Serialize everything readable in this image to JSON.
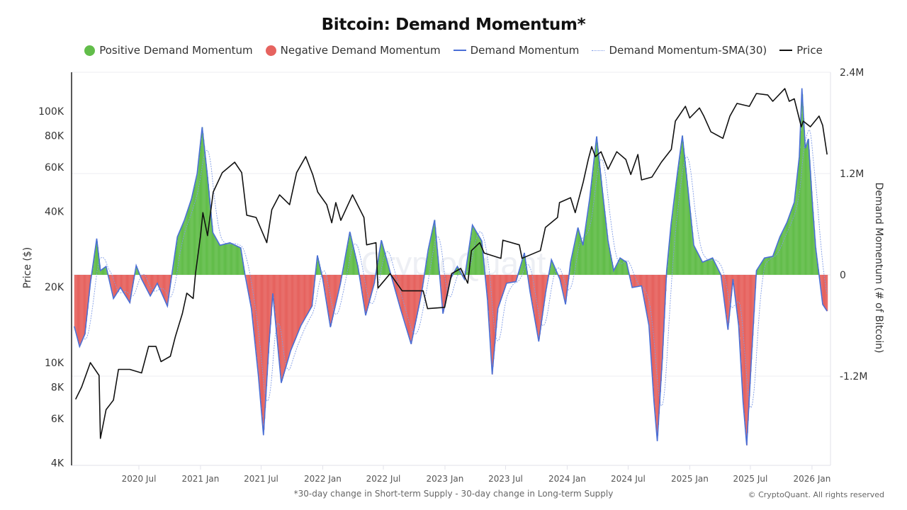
{
  "chart_data": {
    "type": "bar+line",
    "title": "Bitcoin: Demand Momentum*",
    "footnote": "*30-day change in Short-term Supply - 30-day change in Long-term Supply",
    "copyright": "© CryptoQuant. All rights reserved",
    "watermark": "CryptoQuant",
    "legend": [
      {
        "name": "Positive Demand Momentum",
        "kind": "dot",
        "color": "#62bd4a"
      },
      {
        "name": "Negative Demand Momentum",
        "kind": "dot",
        "color": "#e6635f"
      },
      {
        "name": "Demand Momentum",
        "kind": "line",
        "color": "#4a6fd6"
      },
      {
        "name": "Demand Momentum-SMA(30)",
        "kind": "dotted",
        "color": "#7f9be6"
      },
      {
        "name": "Price",
        "kind": "line",
        "color": "#111111"
      }
    ],
    "legend_position": "top",
    "y_left": {
      "label": "Price ($)",
      "scale": "log",
      "range": [
        4000,
        143000
      ],
      "ticks": [
        "4K",
        "6K",
        "8K",
        "10K",
        "20K",
        "40K",
        "60K",
        "80K",
        "100K"
      ],
      "tick_values": [
        4000,
        6000,
        8000,
        10000,
        20000,
        40000,
        60000,
        80000,
        100000
      ]
    },
    "y_right": {
      "label": "Demand Momentum (# of Bitcoin)",
      "scale": "linear",
      "range": [
        -2260000,
        2400000
      ],
      "ticks": [
        "2.4M",
        "1.2M",
        "0",
        "-1.2M"
      ],
      "tick_values": [
        2400000,
        1200000,
        0,
        -1200000
      ]
    },
    "x": {
      "range": [
        "2019-12-20",
        "2026-02-20"
      ],
      "ticks": [
        "2020 Jul",
        "2021 Jan",
        "2021 Jul",
        "2022 Jan",
        "2022 Jul",
        "2023 Jan",
        "2023 Jul",
        "2024 Jan",
        "2024 Jul",
        "2025 Jan",
        "2025 Jul",
        "2026 Jan"
      ],
      "tick_dates": [
        "2020-07-01",
        "2021-01-01",
        "2021-07-01",
        "2022-01-01",
        "2022-07-01",
        "2023-01-01",
        "2023-07-01",
        "2024-01-01",
        "2024-07-01",
        "2025-01-01",
        "2025-07-01",
        "2026-01-01"
      ]
    },
    "grid": true,
    "colors": {
      "positive": "#62bd4a",
      "negative": "#e6635f",
      "momentum": "#4a6fd6",
      "sma": "#7f9be6",
      "price": "#111111"
    },
    "demand_momentum": [
      [
        "2019-12-21",
        -610000
      ],
      [
        "2020-01-06",
        -850000
      ],
      [
        "2020-01-22",
        -700000
      ],
      [
        "2020-02-07",
        -100000
      ],
      [
        "2020-02-26",
        430000
      ],
      [
        "2020-03-08",
        50000
      ],
      [
        "2020-03-25",
        100000
      ],
      [
        "2020-04-16",
        -280000
      ],
      [
        "2020-05-07",
        -150000
      ],
      [
        "2020-06-04",
        -330000
      ],
      [
        "2020-06-23",
        110000
      ],
      [
        "2020-07-09",
        -50000
      ],
      [
        "2020-08-04",
        -250000
      ],
      [
        "2020-08-25",
        -100000
      ],
      [
        "2020-09-24",
        -370000
      ],
      [
        "2020-10-09",
        50000
      ],
      [
        "2020-10-24",
        450000
      ],
      [
        "2020-11-14",
        650000
      ],
      [
        "2020-12-05",
        900000
      ],
      [
        "2020-12-22",
        1200000
      ],
      [
        "2021-01-06",
        1750000
      ],
      [
        "2021-01-21",
        1200000
      ],
      [
        "2021-02-07",
        500000
      ],
      [
        "2021-02-28",
        350000
      ],
      [
        "2021-03-30",
        380000
      ],
      [
        "2021-05-01",
        320000
      ],
      [
        "2021-05-14",
        0
      ],
      [
        "2021-06-02",
        -400000
      ],
      [
        "2021-06-23",
        -1200000
      ],
      [
        "2021-07-08",
        -1900000
      ],
      [
        "2021-07-25",
        -800000
      ],
      [
        "2021-08-05",
        -220000
      ],
      [
        "2021-08-30",
        -1280000
      ],
      [
        "2021-09-27",
        -900000
      ],
      [
        "2021-10-28",
        -600000
      ],
      [
        "2021-11-30",
        -370000
      ],
      [
        "2021-12-16",
        230000
      ],
      [
        "2022-01-01",
        -50000
      ],
      [
        "2022-01-24",
        -620000
      ],
      [
        "2022-02-23",
        -100000
      ],
      [
        "2022-03-23",
        510000
      ],
      [
        "2022-04-16",
        100000
      ],
      [
        "2022-05-09",
        -480000
      ],
      [
        "2022-06-04",
        -100000
      ],
      [
        "2022-06-25",
        410000
      ],
      [
        "2022-07-20",
        50000
      ],
      [
        "2022-08-21",
        -400000
      ],
      [
        "2022-09-22",
        -820000
      ],
      [
        "2022-10-24",
        -200000
      ],
      [
        "2022-11-12",
        300000
      ],
      [
        "2022-12-01",
        650000
      ],
      [
        "2022-12-16",
        0
      ],
      [
        "2022-12-26",
        -460000
      ],
      [
        "2023-01-17",
        -50000
      ],
      [
        "2023-02-07",
        100000
      ],
      [
        "2023-02-28",
        -50000
      ],
      [
        "2023-03-24",
        590000
      ],
      [
        "2023-04-21",
        400000
      ],
      [
        "2023-05-08",
        -300000
      ],
      [
        "2023-05-22",
        -1180000
      ],
      [
        "2023-06-08",
        -400000
      ],
      [
        "2023-07-04",
        -100000
      ],
      [
        "2023-08-01",
        -80000
      ],
      [
        "2023-08-26",
        260000
      ],
      [
        "2023-09-12",
        -200000
      ],
      [
        "2023-10-08",
        -790000
      ],
      [
        "2023-10-29",
        -200000
      ],
      [
        "2023-11-15",
        180000
      ],
      [
        "2023-12-10",
        -50000
      ],
      [
        "2023-12-27",
        -350000
      ],
      [
        "2024-01-11",
        150000
      ],
      [
        "2024-02-02",
        560000
      ],
      [
        "2024-02-17",
        350000
      ],
      [
        "2024-03-08",
        900000
      ],
      [
        "2024-03-29",
        1640000
      ],
      [
        "2024-04-15",
        1000000
      ],
      [
        "2024-05-02",
        400000
      ],
      [
        "2024-05-19",
        50000
      ],
      [
        "2024-06-07",
        200000
      ],
      [
        "2024-06-26",
        150000
      ],
      [
        "2024-07-13",
        -150000
      ],
      [
        "2024-08-10",
        -130000
      ],
      [
        "2024-09-01",
        -600000
      ],
      [
        "2024-09-16",
        -1500000
      ],
      [
        "2024-09-26",
        -1970000
      ],
      [
        "2024-10-11",
        -1000000
      ],
      [
        "2024-10-24",
        50000
      ],
      [
        "2024-11-06",
        600000
      ],
      [
        "2024-11-25",
        1200000
      ],
      [
        "2024-12-10",
        1650000
      ],
      [
        "2024-12-27",
        1000000
      ],
      [
        "2025-01-13",
        350000
      ],
      [
        "2025-02-08",
        150000
      ],
      [
        "2025-03-10",
        200000
      ],
      [
        "2025-04-04",
        0
      ],
      [
        "2025-04-25",
        -650000
      ],
      [
        "2025-05-10",
        -50000
      ],
      [
        "2025-05-27",
        -600000
      ],
      [
        "2025-06-09",
        -1500000
      ],
      [
        "2025-06-20",
        -2020000
      ],
      [
        "2025-07-04",
        -1000000
      ],
      [
        "2025-07-19",
        50000
      ],
      [
        "2025-08-12",
        200000
      ],
      [
        "2025-09-06",
        220000
      ],
      [
        "2025-09-27",
        450000
      ],
      [
        "2025-10-18",
        620000
      ],
      [
        "2025-11-09",
        860000
      ],
      [
        "2025-11-24",
        1400000
      ],
      [
        "2025-12-02",
        2210000
      ],
      [
        "2025-12-12",
        1500000
      ],
      [
        "2025-12-21",
        1610000
      ],
      [
        "2026-01-03",
        800000
      ],
      [
        "2026-01-12",
        320000
      ],
      [
        "2026-01-22",
        0
      ],
      [
        "2026-02-02",
        -350000
      ],
      [
        "2026-02-15",
        -430000
      ]
    ],
    "price": [
      [
        "2019-12-25",
        7150
      ],
      [
        "2020-01-12",
        8000
      ],
      [
        "2020-02-07",
        10000
      ],
      [
        "2020-03-04",
        8900
      ],
      [
        "2020-03-08",
        5000
      ],
      [
        "2020-03-25",
        6500
      ],
      [
        "2020-04-16",
        7100
      ],
      [
        "2020-05-01",
        9400
      ],
      [
        "2020-06-04",
        9400
      ],
      [
        "2020-07-09",
        9100
      ],
      [
        "2020-07-30",
        11600
      ],
      [
        "2020-08-21",
        11600
      ],
      [
        "2020-09-05",
        10100
      ],
      [
        "2020-10-03",
        10600
      ],
      [
        "2020-10-18",
        12700
      ],
      [
        "2020-11-08",
        15700
      ],
      [
        "2020-11-21",
        18900
      ],
      [
        "2020-12-10",
        18000
      ],
      [
        "2020-12-17",
        22600
      ],
      [
        "2021-01-01",
        32000
      ],
      [
        "2021-01-08",
        39500
      ],
      [
        "2021-01-22",
        32000
      ],
      [
        "2021-02-08",
        47700
      ],
      [
        "2021-03-07",
        57000
      ],
      [
        "2021-04-13",
        62700
      ],
      [
        "2021-05-04",
        57000
      ],
      [
        "2021-05-19",
        38600
      ],
      [
        "2021-06-16",
        37800
      ],
      [
        "2021-07-18",
        30000
      ],
      [
        "2021-08-02",
        40600
      ],
      [
        "2021-08-25",
        46500
      ],
      [
        "2021-09-24",
        42500
      ],
      [
        "2021-10-15",
        57000
      ],
      [
        "2021-11-11",
        66000
      ],
      [
        "2021-12-02",
        56000
      ],
      [
        "2021-12-17",
        47700
      ],
      [
        "2022-01-13",
        42500
      ],
      [
        "2022-01-28",
        36000
      ],
      [
        "2022-02-09",
        43300
      ],
      [
        "2022-02-24",
        36800
      ],
      [
        "2022-03-31",
        46500
      ],
      [
        "2022-05-04",
        37800
      ],
      [
        "2022-05-12",
        29400
      ],
      [
        "2022-06-09",
        30000
      ],
      [
        "2022-06-15",
        19800
      ],
      [
        "2022-07-21",
        22600
      ],
      [
        "2022-08-26",
        19300
      ],
      [
        "2022-10-28",
        19300
      ],
      [
        "2022-11-10",
        16400
      ],
      [
        "2022-12-31",
        16600
      ],
      [
        "2023-01-21",
        22600
      ],
      [
        "2023-02-17",
        23700
      ],
      [
        "2023-03-10",
        20700
      ],
      [
        "2023-03-21",
        27900
      ],
      [
        "2023-04-15",
        30000
      ],
      [
        "2023-04-28",
        27300
      ],
      [
        "2023-06-17",
        26000
      ],
      [
        "2023-06-23",
        30700
      ],
      [
        "2023-08-11",
        29400
      ],
      [
        "2023-08-19",
        26000
      ],
      [
        "2023-10-13",
        27900
      ],
      [
        "2023-10-28",
        34500
      ],
      [
        "2023-12-03",
        37800
      ],
      [
        "2023-12-09",
        43300
      ],
      [
        "2024-01-11",
        45300
      ],
      [
        "2024-01-25",
        39500
      ],
      [
        "2024-02-18",
        52300
      ],
      [
        "2024-03-04",
        64300
      ],
      [
        "2024-03-14",
        72300
      ],
      [
        "2024-03-25",
        66000
      ],
      [
        "2024-04-11",
        69000
      ],
      [
        "2024-05-02",
        58800
      ],
      [
        "2024-05-28",
        69000
      ],
      [
        "2024-06-24",
        64300
      ],
      [
        "2024-07-09",
        56000
      ],
      [
        "2024-07-30",
        67300
      ],
      [
        "2024-08-10",
        53300
      ],
      [
        "2024-09-10",
        54700
      ],
      [
        "2024-10-08",
        62700
      ],
      [
        "2024-11-07",
        70500
      ],
      [
        "2024-11-19",
        91300
      ],
      [
        "2024-12-19",
        104600
      ],
      [
        "2025-01-01",
        94000
      ],
      [
        "2025-01-30",
        103000
      ],
      [
        "2025-02-12",
        95600
      ],
      [
        "2025-03-05",
        82800
      ],
      [
        "2025-04-10",
        78000
      ],
      [
        "2025-05-01",
        95600
      ],
      [
        "2025-05-22",
        107400
      ],
      [
        "2025-06-28",
        104600
      ],
      [
        "2025-07-19",
        117600
      ],
      [
        "2025-08-22",
        116000
      ],
      [
        "2025-09-06",
        109500
      ],
      [
        "2025-10-12",
        123000
      ],
      [
        "2025-10-25",
        109500
      ],
      [
        "2025-11-09",
        112000
      ],
      [
        "2025-11-30",
        86700
      ],
      [
        "2025-12-06",
        91300
      ],
      [
        "2025-12-27",
        86700
      ],
      [
        "2026-01-22",
        95600
      ],
      [
        "2026-02-02",
        87800
      ],
      [
        "2026-02-15",
        67300
      ]
    ]
  }
}
